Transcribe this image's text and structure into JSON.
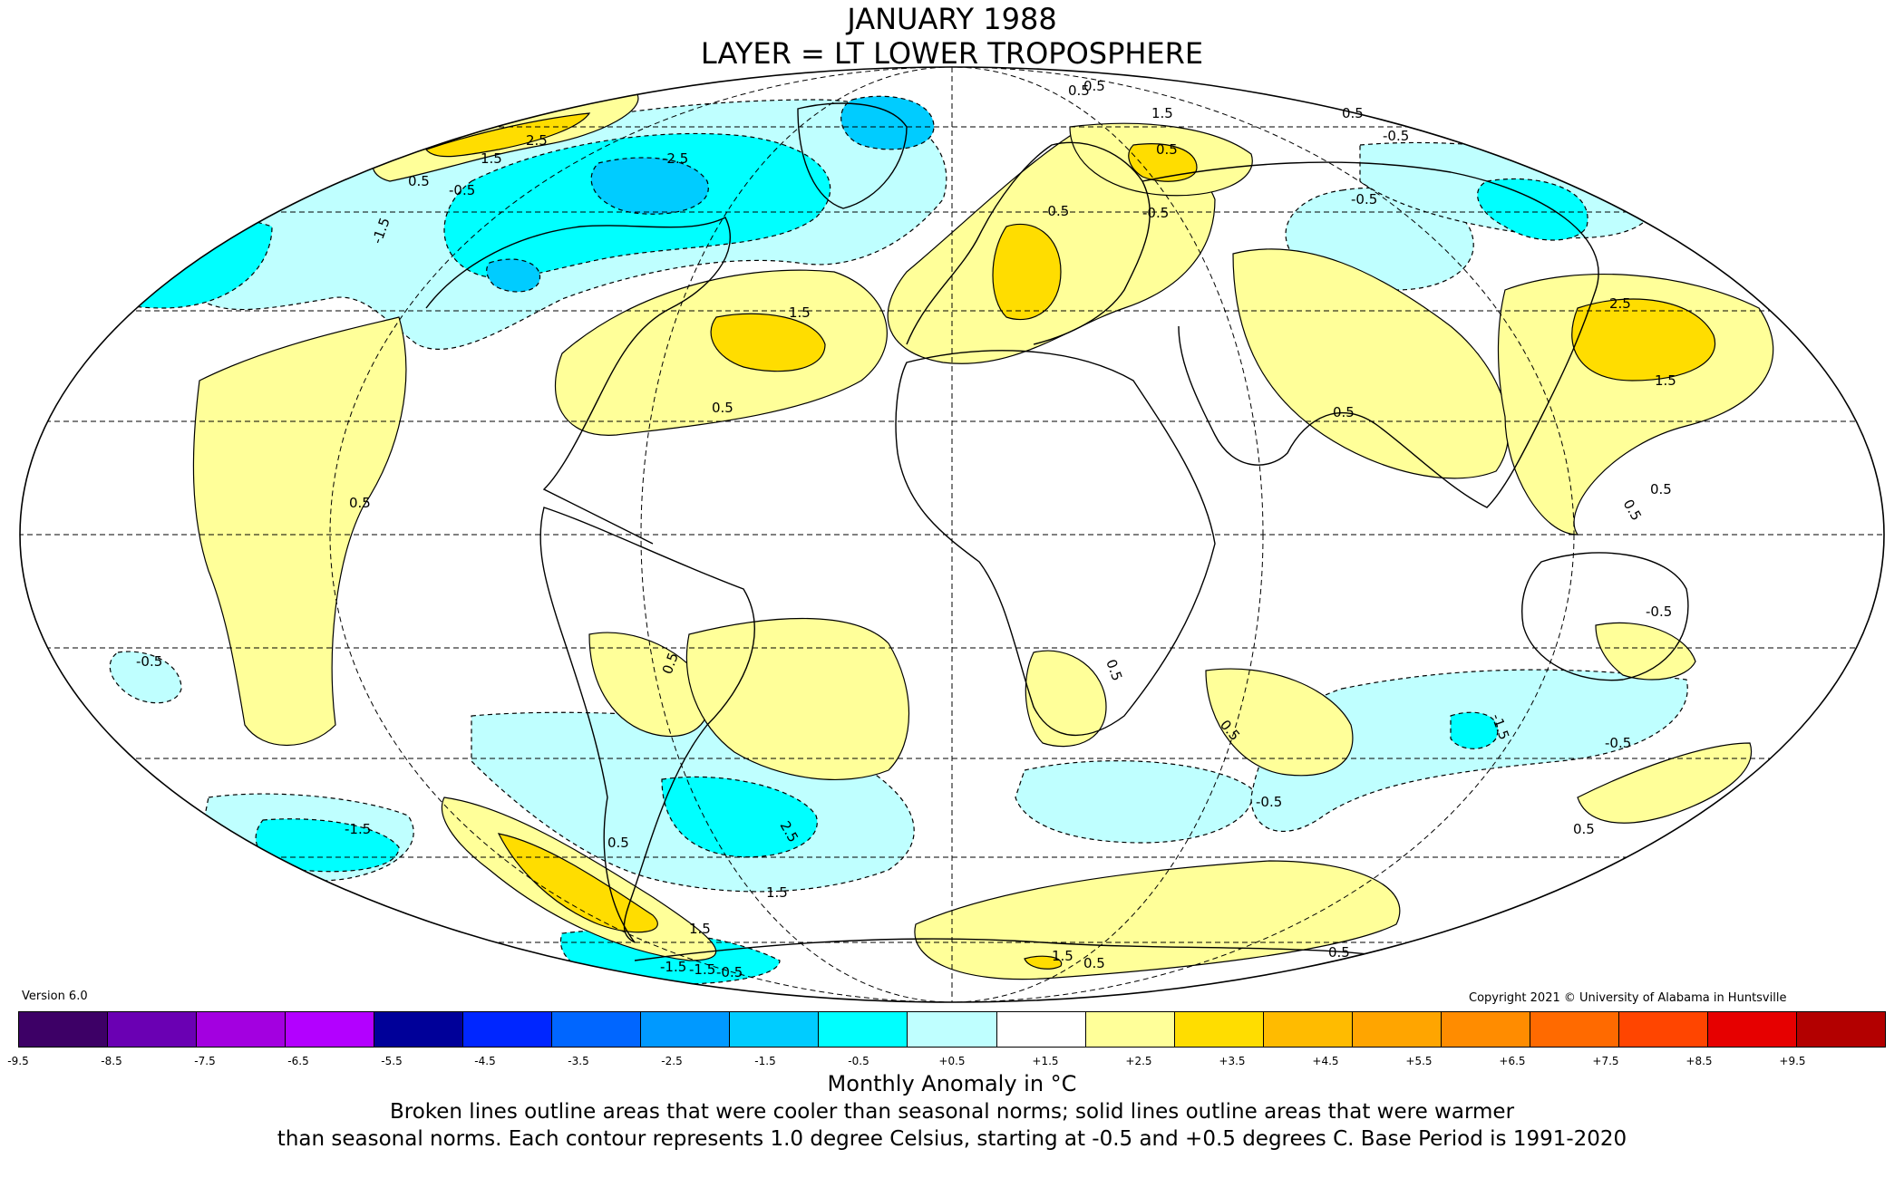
{
  "title": {
    "line1": "JANUARY 1988",
    "line2": "LAYER = LT LOWER TROPOSPHERE"
  },
  "version": "Version 6.0",
  "copyright": "Copyright 2021 © University of Alabama in Huntsville",
  "colorbar": {
    "colors": [
      "#3d0066",
      "#6a00b3",
      "#a300e0",
      "#b300ff",
      "#000099",
      "#0026ff",
      "#0066ff",
      "#0099ff",
      "#00ccff",
      "#00ffff",
      "#bfffff",
      "#ffffff",
      "#ffff99",
      "#ffdd00",
      "#ffbb00",
      "#ffa500",
      "#ff8c00",
      "#ff6a00",
      "#ff4500",
      "#e60000",
      "#b30000"
    ],
    "ticks": [
      "-9.5",
      "-8.5",
      "-7.5",
      "-6.5",
      "-5.5",
      "-4.5",
      "-3.5",
      "-2.5",
      "-1.5",
      "-0.5",
      "+0.5",
      "+1.5",
      "+2.5",
      "+3.5",
      "+4.5",
      "+5.5",
      "+6.5",
      "+7.5",
      "+8.5",
      "+9.5"
    ]
  },
  "units_label": "Monthly Anomaly in °C",
  "note": {
    "line1": "Broken lines outline areas that were cooler than seasonal norms; solid lines outline areas that were warmer",
    "line2": "than seasonal norms. Each contour represents 1.0 degree Celsius, starting at -0.5 and +0.5 degrees C. Base Period is 1991-2020"
  },
  "contour_labels": [
    "0.5",
    "1.5",
    "2.5",
    "-0.5",
    "-1.5",
    "-2.5",
    "0.5",
    "1.5",
    "0.5",
    "-0.5",
    "0.5",
    "2.5",
    "1.5",
    "0.5",
    "0.5",
    "-0.5",
    "0.5",
    "0.5",
    "-0.5",
    "0.5",
    "-0.5",
    "0.5",
    "-0.5",
    "-1.5",
    "2.5",
    "1.5",
    "0.5",
    "1.5",
    "0.5",
    "-1.5",
    "-0.5",
    "0.5",
    "0.5",
    "-0.5",
    "0.5",
    "0.5",
    "1.5",
    "-1.5",
    "-0.5",
    "1.5",
    "-0.5",
    "0.5",
    "-1.5"
  ]
}
